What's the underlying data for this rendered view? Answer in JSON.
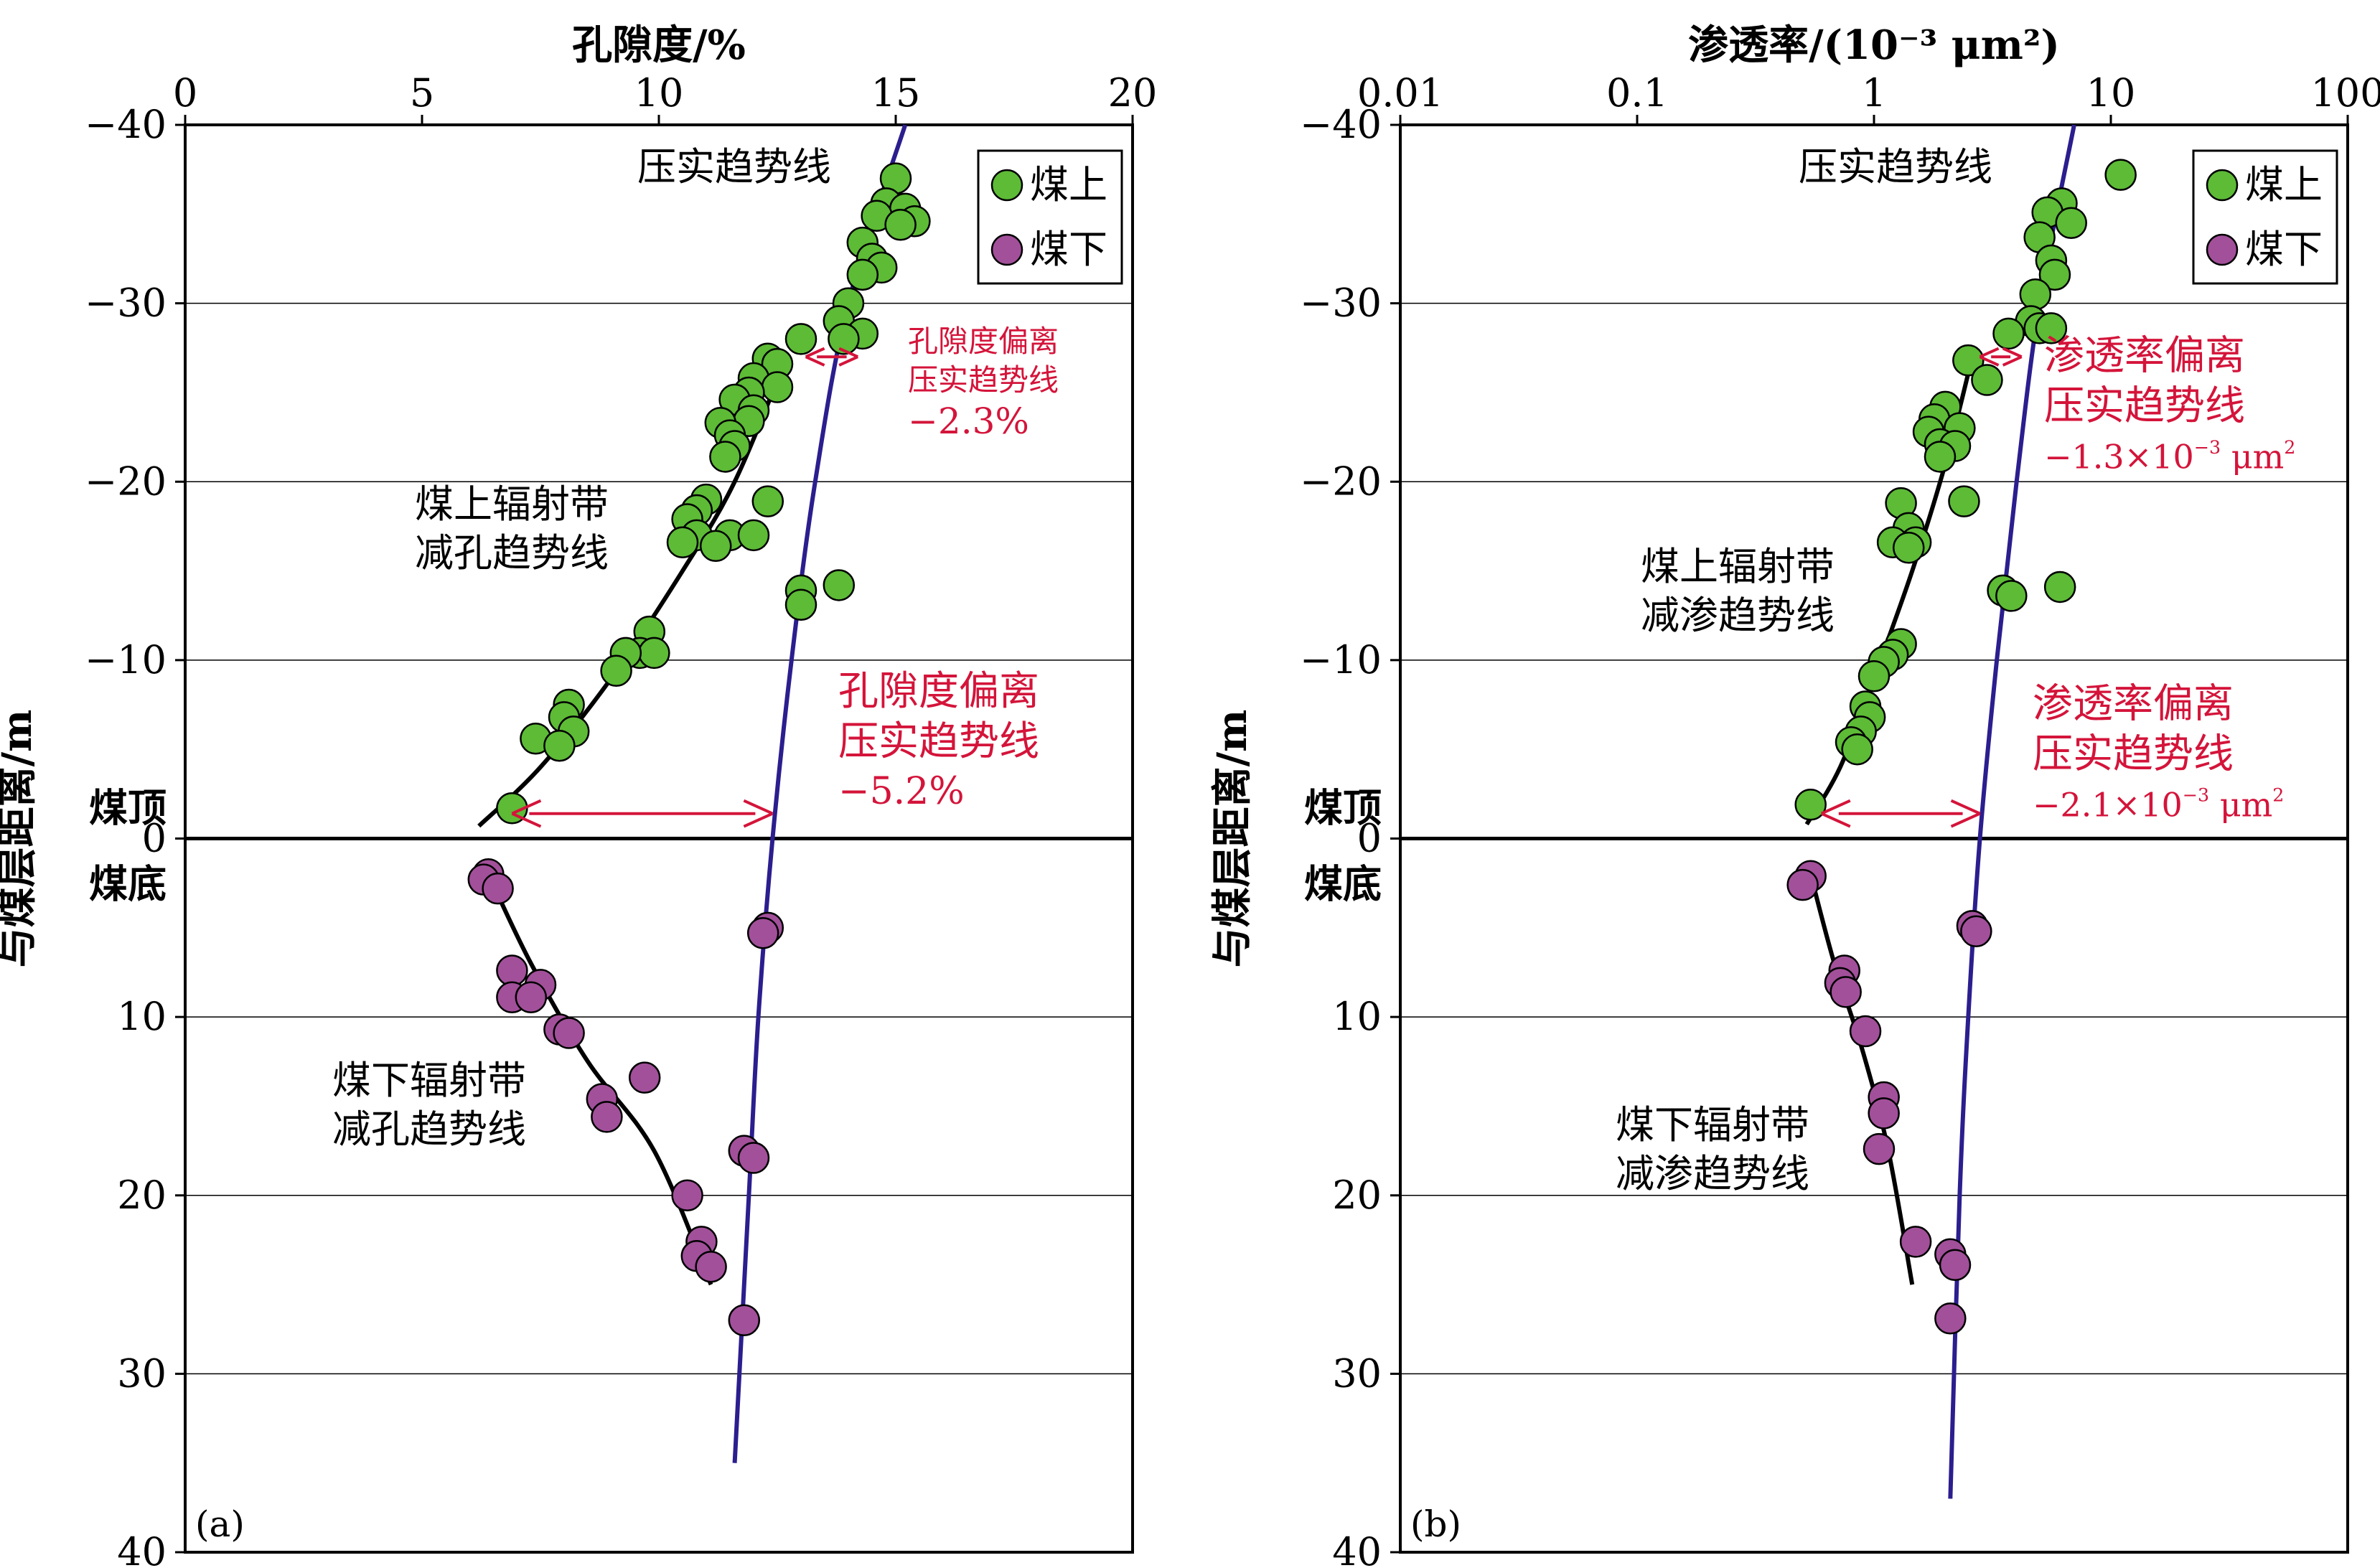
{
  "colors": {
    "above": "#5dbb36",
    "below": "#a2509a",
    "red": "#d4143a",
    "compaction": "#2b1e8e",
    "trend": "#000000",
    "grid": "#000000"
  },
  "shared": {
    "ylabel": "与煤层距离/m",
    "y_ticks": [
      -40,
      -30,
      -20,
      -10,
      0,
      10,
      20,
      30,
      40
    ],
    "ylim": [
      -40,
      40
    ],
    "coal_roof": "煤顶",
    "coal_floor": "煤底",
    "legend": {
      "above": "煤上",
      "below": "煤下"
    }
  },
  "chart_data": [
    {
      "panel": "(a)",
      "type": "scatter",
      "xlabel": "孔隙度/%",
      "x_scale": "linear",
      "xlim": [
        0,
        20
      ],
      "x_ticks": [
        0,
        5,
        10,
        15,
        20
      ],
      "x_tick_labels": [
        "0",
        "5",
        "10",
        "15",
        "20"
      ],
      "series": [
        {
          "name": "煤上",
          "points": [
            [
              15.0,
              -37.0
            ],
            [
              14.8,
              -35.6
            ],
            [
              15.2,
              -35.3
            ],
            [
              14.6,
              -34.9
            ],
            [
              15.4,
              -34.6
            ],
            [
              15.1,
              -34.4
            ],
            [
              14.3,
              -33.4
            ],
            [
              14.5,
              -32.5
            ],
            [
              14.7,
              -32.0
            ],
            [
              14.3,
              -31.6
            ],
            [
              14.0,
              -30.0
            ],
            [
              13.8,
              -29.0
            ],
            [
              14.3,
              -28.3
            ],
            [
              13.0,
              -28.0
            ],
            [
              13.9,
              -28.0
            ],
            [
              12.3,
              -26.9
            ],
            [
              12.5,
              -26.6
            ],
            [
              12.0,
              -25.8
            ],
            [
              12.5,
              -25.3
            ],
            [
              11.9,
              -25.0
            ],
            [
              11.6,
              -24.6
            ],
            [
              12.0,
              -24.0
            ],
            [
              11.9,
              -23.4
            ],
            [
              11.3,
              -23.3
            ],
            [
              11.5,
              -22.6
            ],
            [
              11.6,
              -22.0
            ],
            [
              11.4,
              -21.4
            ],
            [
              11.0,
              -19.0
            ],
            [
              12.3,
              -18.9
            ],
            [
              10.8,
              -18.4
            ],
            [
              10.6,
              -17.9
            ],
            [
              10.8,
              -17.0
            ],
            [
              11.5,
              -17.0
            ],
            [
              11.2,
              -16.4
            ],
            [
              12.0,
              -17.0
            ],
            [
              10.5,
              -16.6
            ],
            [
              13.0,
              -13.9
            ],
            [
              13.8,
              -14.2
            ],
            [
              13.0,
              -13.1
            ],
            [
              9.8,
              -11.6
            ],
            [
              9.6,
              -10.4
            ],
            [
              9.9,
              -10.4
            ],
            [
              9.3,
              -10.4
            ],
            [
              9.1,
              -9.4
            ],
            [
              8.1,
              -7.5
            ],
            [
              8.0,
              -6.8
            ],
            [
              8.2,
              -6.0
            ],
            [
              7.4,
              -5.6
            ],
            [
              7.9,
              -5.2
            ],
            [
              6.9,
              -1.7
            ]
          ]
        },
        {
          "name": "煤下",
          "points": [
            [
              6.4,
              2.0
            ],
            [
              6.3,
              2.3
            ],
            [
              6.6,
              2.8
            ],
            [
              12.3,
              5.0
            ],
            [
              12.2,
              5.3
            ],
            [
              6.9,
              7.4
            ],
            [
              7.5,
              8.2
            ],
            [
              6.9,
              8.9
            ],
            [
              7.3,
              8.9
            ],
            [
              7.9,
              10.7
            ],
            [
              8.1,
              10.9
            ],
            [
              9.7,
              13.4
            ],
            [
              8.8,
              14.6
            ],
            [
              8.9,
              15.6
            ],
            [
              11.8,
              17.5
            ],
            [
              12.0,
              17.9
            ],
            [
              10.6,
              20.0
            ],
            [
              10.9,
              22.6
            ],
            [
              10.8,
              23.4
            ],
            [
              11.1,
              24.0
            ],
            [
              11.8,
              27.0
            ]
          ]
        }
      ],
      "compaction_curve": [
        [
          15.2,
          -40
        ],
        [
          14.0,
          -30
        ],
        [
          13.3,
          -20
        ],
        [
          12.8,
          -10
        ],
        [
          12.4,
          0
        ],
        [
          12.1,
          10
        ],
        [
          11.9,
          20
        ],
        [
          11.6,
          35
        ]
      ],
      "trend_above": [
        [
          6.2,
          -0.7
        ],
        [
          7.5,
          -4.0
        ],
        [
          9.0,
          -9.0
        ],
        [
          10.5,
          -15.0
        ],
        [
          11.6,
          -20.0
        ],
        [
          12.7,
          -27.0
        ]
      ],
      "trend_below": [
        [
          6.4,
          2.0
        ],
        [
          7.3,
          7.0
        ],
        [
          8.5,
          12.5
        ],
        [
          9.9,
          17.5
        ],
        [
          11.1,
          25.0
        ]
      ],
      "labels": {
        "compaction": "压实趋势线",
        "above_trend": [
          "煤上辐射带",
          "减孔趋势线"
        ],
        "below_trend": [
          "煤下辐射带",
          "减孔趋势线"
        ],
        "dev_small": [
          "孔隙度偏离",
          "压实趋势线",
          "−2.3%"
        ],
        "dev_big": [
          "孔隙度偏离",
          "压实趋势线",
          "−5.2%"
        ]
      },
      "arrows": {
        "small": [
          [
            13.1,
            -27.0
          ],
          [
            14.2,
            -27.0
          ]
        ],
        "big": [
          [
            6.9,
            -1.4
          ],
          [
            12.4,
            -1.4
          ]
        ]
      }
    },
    {
      "panel": "(b)",
      "type": "scatter",
      "xlabel": "渗透率/(10⁻³ μm²)",
      "x_scale": "log",
      "xlim": [
        0.01,
        100
      ],
      "x_ticks": [
        0.01,
        0.1,
        1,
        10,
        100
      ],
      "x_tick_labels": [
        "0.01",
        "0.1",
        "1",
        "10",
        "100"
      ],
      "series": [
        {
          "name": "煤上",
          "points": [
            [
              11.0,
              -37.2
            ],
            [
              6.2,
              -35.6
            ],
            [
              5.4,
              -35.1
            ],
            [
              6.8,
              -34.5
            ],
            [
              5.0,
              -33.7
            ],
            [
              5.6,
              -32.4
            ],
            [
              5.8,
              -31.6
            ],
            [
              4.8,
              -30.5
            ],
            [
              4.6,
              -29.0
            ],
            [
              5.0,
              -28.6
            ],
            [
              5.6,
              -28.6
            ],
            [
              3.7,
              -28.3
            ],
            [
              2.5,
              -26.8
            ],
            [
              3.0,
              -25.7
            ],
            [
              2.0,
              -24.2
            ],
            [
              1.8,
              -23.5
            ],
            [
              2.3,
              -23.0
            ],
            [
              1.7,
              -22.8
            ],
            [
              1.9,
              -22.1
            ],
            [
              2.2,
              -22.0
            ],
            [
              1.9,
              -21.4
            ],
            [
              2.4,
              -18.9
            ],
            [
              1.3,
              -18.8
            ],
            [
              1.4,
              -17.4
            ],
            [
              1.5,
              -16.6
            ],
            [
              1.2,
              -16.6
            ],
            [
              1.4,
              -16.3
            ],
            [
              3.5,
              -13.9
            ],
            [
              3.8,
              -13.6
            ],
            [
              6.1,
              -14.1
            ],
            [
              1.3,
              -10.9
            ],
            [
              1.2,
              -10.3
            ],
            [
              1.1,
              -9.9
            ],
            [
              1.0,
              -9.1
            ],
            [
              0.92,
              -7.4
            ],
            [
              0.96,
              -6.8
            ],
            [
              0.88,
              -6.0
            ],
            [
              0.8,
              -5.4
            ],
            [
              0.85,
              -5.0
            ],
            [
              0.54,
              -1.9
            ]
          ]
        },
        {
          "name": "煤下",
          "points": [
            [
              0.54,
              2.1
            ],
            [
              0.5,
              2.6
            ],
            [
              2.6,
              4.9
            ],
            [
              2.7,
              5.2
            ],
            [
              0.75,
              7.4
            ],
            [
              0.72,
              8.1
            ],
            [
              0.76,
              8.6
            ],
            [
              0.92,
              10.8
            ],
            [
              1.1,
              14.5
            ],
            [
              1.1,
              15.4
            ],
            [
              1.05,
              17.4
            ],
            [
              1.5,
              22.6
            ],
            [
              2.1,
              23.3
            ],
            [
              2.2,
              23.9
            ],
            [
              2.1,
              26.9
            ]
          ]
        }
      ],
      "compaction_curve": [
        [
          7.0,
          -40
        ],
        [
          5.0,
          -30
        ],
        [
          4.0,
          -20
        ],
        [
          3.3,
          -10
        ],
        [
          2.8,
          0
        ],
        [
          2.5,
          10
        ],
        [
          2.3,
          20
        ],
        [
          2.1,
          37
        ]
      ],
      "trend_above": [
        [
          0.52,
          -0.8
        ],
        [
          0.72,
          -4.0
        ],
        [
          1.0,
          -9.0
        ],
        [
          1.45,
          -15.0
        ],
        [
          2.0,
          -21.0
        ],
        [
          2.6,
          -27.0
        ]
      ],
      "trend_below": [
        [
          0.54,
          2.0
        ],
        [
          0.68,
          7.0
        ],
        [
          0.9,
          12.0
        ],
        [
          1.15,
          17.5
        ],
        [
          1.45,
          25.0
        ]
      ],
      "labels": {
        "compaction": "压实趋势线",
        "above_trend": [
          "煤上辐射带",
          "减渗趋势线"
        ],
        "below_trend": [
          "煤下辐射带",
          "减渗趋势线"
        ],
        "dev_small": [
          "渗透率偏离",
          "压实趋势线",
          "−1.3×10",
          "−3",
          "μm",
          "2"
        ],
        "dev_big": [
          "渗透率偏离",
          "压实趋势线",
          "−2.1×10",
          "−3",
          "μm",
          "2"
        ]
      },
      "arrows": {
        "small": [
          [
            2.8,
            -27.0
          ],
          [
            4.2,
            -27.0
          ]
        ],
        "big": [
          [
            0.6,
            -1.4
          ],
          [
            2.8,
            -1.4
          ]
        ]
      }
    }
  ]
}
